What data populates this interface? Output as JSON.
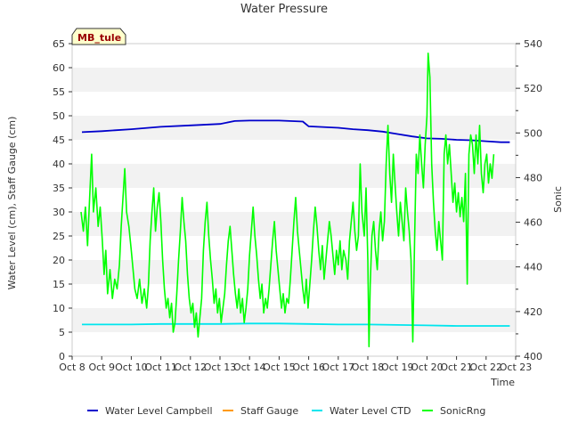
{
  "chart_data": {
    "type": "line",
    "title": "Water Pressure",
    "xlabel": "Time",
    "ylabel_left": "Water Level (cm), Staff Gauge (cm)",
    "ylabel_right": "Sonic",
    "station_label": "MB_tule",
    "x_tick_labels": [
      "Oct 8",
      "Oct 9",
      "Oct 10",
      "Oct 11",
      "Oct 12",
      "Oct 13",
      "Oct 14",
      "Oct 15",
      "Oct 16",
      "Oct 17",
      "Oct 18",
      "Oct 19",
      "Oct 20",
      "Oct 21",
      "Oct 22",
      "Oct 23"
    ],
    "xlim_days": [
      8,
      23
    ],
    "ylim_left": [
      0,
      65
    ],
    "y_ticks_left": [
      "0",
      "5",
      "10",
      "15",
      "20",
      "25",
      "30",
      "35",
      "40",
      "45",
      "50",
      "55",
      "60",
      "65"
    ],
    "ylim_right": [
      400,
      540
    ],
    "y_ticks_right": [
      "400",
      "420",
      "440",
      "460",
      "480",
      "500",
      "520",
      "540"
    ],
    "grid": true,
    "legend_position": "bottom",
    "series": [
      {
        "name": "Water Level Campbell",
        "color": "#0000cc",
        "axis": "left",
        "points": [
          [
            8.33,
            46.6
          ],
          [
            9.0,
            46.8
          ],
          [
            10.0,
            47.2
          ],
          [
            11.0,
            47.7
          ],
          [
            12.0,
            48.0
          ],
          [
            13.0,
            48.3
          ],
          [
            13.5,
            48.9
          ],
          [
            14.0,
            49.0
          ],
          [
            15.0,
            49.0
          ],
          [
            15.8,
            48.8
          ],
          [
            16.0,
            47.8
          ],
          [
            17.0,
            47.5
          ],
          [
            17.5,
            47.2
          ],
          [
            18.0,
            47.0
          ],
          [
            18.5,
            46.7
          ],
          [
            19.0,
            46.2
          ],
          [
            19.5,
            45.7
          ],
          [
            20.0,
            45.3
          ],
          [
            20.5,
            45.2
          ],
          [
            21.0,
            45.0
          ],
          [
            21.5,
            44.9
          ],
          [
            22.0,
            44.7
          ],
          [
            22.5,
            44.5
          ],
          [
            22.8,
            44.5
          ]
        ]
      },
      {
        "name": "Staff Gauge",
        "color": "#ff9900",
        "axis": "left",
        "points": []
      },
      {
        "name": "Water Level CTD",
        "color": "#00e5ee",
        "axis": "left",
        "points": [
          [
            8.33,
            6.6
          ],
          [
            10.0,
            6.6
          ],
          [
            11.0,
            6.7
          ],
          [
            13.0,
            6.7
          ],
          [
            14.0,
            6.8
          ],
          [
            15.0,
            6.8
          ],
          [
            16.0,
            6.7
          ],
          [
            17.0,
            6.6
          ],
          [
            18.0,
            6.6
          ],
          [
            19.0,
            6.5
          ],
          [
            20.0,
            6.4
          ],
          [
            21.0,
            6.3
          ],
          [
            22.0,
            6.3
          ],
          [
            22.8,
            6.3
          ]
        ]
      },
      {
        "name": "SonicRng",
        "color": "#00ff00",
        "axis": "left",
        "points": [
          [
            8.3,
            30
          ],
          [
            8.38,
            26
          ],
          [
            8.45,
            31
          ],
          [
            8.52,
            23
          ],
          [
            8.6,
            34
          ],
          [
            8.66,
            42
          ],
          [
            8.72,
            30
          ],
          [
            8.8,
            35
          ],
          [
            8.88,
            27
          ],
          [
            8.95,
            31
          ],
          [
            9.02,
            24
          ],
          [
            9.08,
            17
          ],
          [
            9.14,
            22
          ],
          [
            9.2,
            13
          ],
          [
            9.28,
            18
          ],
          [
            9.36,
            12
          ],
          [
            9.44,
            16
          ],
          [
            9.52,
            14
          ],
          [
            9.6,
            19
          ],
          [
            9.66,
            27
          ],
          [
            9.72,
            33
          ],
          [
            9.78,
            39
          ],
          [
            9.84,
            30
          ],
          [
            9.92,
            27
          ],
          [
            10.0,
            22
          ],
          [
            10.06,
            18
          ],
          [
            10.12,
            14
          ],
          [
            10.2,
            12
          ],
          [
            10.28,
            16
          ],
          [
            10.36,
            11
          ],
          [
            10.44,
            14
          ],
          [
            10.52,
            10
          ],
          [
            10.58,
            15
          ],
          [
            10.64,
            24
          ],
          [
            10.7,
            30
          ],
          [
            10.76,
            35
          ],
          [
            10.82,
            26
          ],
          [
            10.88,
            31
          ],
          [
            10.94,
            34
          ],
          [
            11.0,
            28
          ],
          [
            11.06,
            20
          ],
          [
            11.12,
            14
          ],
          [
            11.18,
            10
          ],
          [
            11.24,
            12
          ],
          [
            11.3,
            8
          ],
          [
            11.36,
            11
          ],
          [
            11.42,
            5
          ],
          [
            11.48,
            7
          ],
          [
            11.54,
            13
          ],
          [
            11.6,
            20
          ],
          [
            11.66,
            26
          ],
          [
            11.72,
            33
          ],
          [
            11.78,
            28
          ],
          [
            11.84,
            24
          ],
          [
            11.9,
            17
          ],
          [
            11.96,
            12
          ],
          [
            12.02,
            9
          ],
          [
            12.08,
            11
          ],
          [
            12.14,
            6
          ],
          [
            12.2,
            9
          ],
          [
            12.26,
            4
          ],
          [
            12.32,
            8
          ],
          [
            12.38,
            12
          ],
          [
            12.44,
            22
          ],
          [
            12.5,
            28
          ],
          [
            12.56,
            32
          ],
          [
            12.62,
            25
          ],
          [
            12.68,
            20
          ],
          [
            12.74,
            16
          ],
          [
            12.8,
            11
          ],
          [
            12.86,
            14
          ],
          [
            12.92,
            9
          ],
          [
            12.98,
            12
          ],
          [
            13.04,
            7
          ],
          [
            13.1,
            10
          ],
          [
            13.16,
            13
          ],
          [
            13.22,
            19
          ],
          [
            13.28,
            24
          ],
          [
            13.34,
            27
          ],
          [
            13.4,
            22
          ],
          [
            13.46,
            17
          ],
          [
            13.52,
            13
          ],
          [
            13.58,
            10
          ],
          [
            13.64,
            14
          ],
          [
            13.7,
            9
          ],
          [
            13.76,
            12
          ],
          [
            13.82,
            7
          ],
          [
            13.88,
            10
          ],
          [
            13.94,
            14
          ],
          [
            14.0,
            21
          ],
          [
            14.06,
            26
          ],
          [
            14.12,
            31
          ],
          [
            14.18,
            25
          ],
          [
            14.24,
            21
          ],
          [
            14.3,
            16
          ],
          [
            14.36,
            12
          ],
          [
            14.42,
            15
          ],
          [
            14.48,
            9
          ],
          [
            14.54,
            12
          ],
          [
            14.6,
            10
          ],
          [
            14.66,
            14
          ],
          [
            14.72,
            19
          ],
          [
            14.78,
            24
          ],
          [
            14.84,
            28
          ],
          [
            14.9,
            22
          ],
          [
            14.96,
            18
          ],
          [
            15.02,
            14
          ],
          [
            15.08,
            10
          ],
          [
            15.14,
            13
          ],
          [
            15.2,
            9
          ],
          [
            15.26,
            12
          ],
          [
            15.32,
            11
          ],
          [
            15.38,
            16
          ],
          [
            15.44,
            22
          ],
          [
            15.5,
            28
          ],
          [
            15.56,
            33
          ],
          [
            15.62,
            26
          ],
          [
            15.68,
            22
          ],
          [
            15.74,
            18
          ],
          [
            15.8,
            14
          ],
          [
            15.86,
            11
          ],
          [
            15.92,
            16
          ],
          [
            15.98,
            10
          ],
          [
            16.04,
            15
          ],
          [
            16.1,
            20
          ],
          [
            16.16,
            26
          ],
          [
            16.22,
            31
          ],
          [
            16.28,
            27
          ],
          [
            16.34,
            22
          ],
          [
            16.4,
            18
          ],
          [
            16.46,
            23
          ],
          [
            16.52,
            16
          ],
          [
            16.58,
            20
          ],
          [
            16.64,
            24
          ],
          [
            16.7,
            28
          ],
          [
            16.76,
            25
          ],
          [
            16.82,
            21
          ],
          [
            16.88,
            17
          ],
          [
            16.94,
            22
          ],
          [
            17.0,
            19
          ],
          [
            17.06,
            24
          ],
          [
            17.12,
            18
          ],
          [
            17.18,
            22
          ],
          [
            17.26,
            20
          ],
          [
            17.32,
            16
          ],
          [
            17.38,
            24
          ],
          [
            17.44,
            28
          ],
          [
            17.5,
            32
          ],
          [
            17.56,
            26
          ],
          [
            17.62,
            22
          ],
          [
            17.68,
            25
          ],
          [
            17.74,
            40
          ],
          [
            17.8,
            30
          ],
          [
            17.88,
            25
          ],
          [
            17.94,
            35
          ],
          [
            18.0,
            20
          ],
          [
            18.04,
            2
          ],
          [
            18.08,
            15
          ],
          [
            18.14,
            25
          ],
          [
            18.2,
            28
          ],
          [
            18.26,
            22
          ],
          [
            18.32,
            18
          ],
          [
            18.38,
            26
          ],
          [
            18.44,
            30
          ],
          [
            18.5,
            24
          ],
          [
            18.56,
            28
          ],
          [
            18.62,
            40
          ],
          [
            18.68,
            48
          ],
          [
            18.74,
            38
          ],
          [
            18.8,
            32
          ],
          [
            18.86,
            42
          ],
          [
            18.92,
            36
          ],
          [
            18.98,
            30
          ],
          [
            19.04,
            25
          ],
          [
            19.1,
            32
          ],
          [
            19.16,
            28
          ],
          [
            19.22,
            24
          ],
          [
            19.28,
            35
          ],
          [
            19.34,
            30
          ],
          [
            19.4,
            26
          ],
          [
            19.46,
            20
          ],
          [
            19.52,
            3
          ],
          [
            19.58,
            24
          ],
          [
            19.64,
            42
          ],
          [
            19.7,
            38
          ],
          [
            19.76,
            46
          ],
          [
            19.82,
            40
          ],
          [
            19.88,
            35
          ],
          [
            19.94,
            44
          ],
          [
            20.0,
            50
          ],
          [
            20.04,
            63
          ],
          [
            20.1,
            58
          ],
          [
            20.16,
            40
          ],
          [
            20.22,
            32
          ],
          [
            20.28,
            26
          ],
          [
            20.34,
            22
          ],
          [
            20.4,
            28
          ],
          [
            20.46,
            24
          ],
          [
            20.52,
            20
          ],
          [
            20.58,
            42
          ],
          [
            20.64,
            46
          ],
          [
            20.7,
            40
          ],
          [
            20.76,
            44
          ],
          [
            20.82,
            38
          ],
          [
            20.88,
            32
          ],
          [
            20.94,
            36
          ],
          [
            21.0,
            30
          ],
          [
            21.06,
            34
          ],
          [
            21.12,
            29
          ],
          [
            21.18,
            33
          ],
          [
            21.24,
            28
          ],
          [
            21.3,
            38
          ],
          [
            21.36,
            15
          ],
          [
            21.42,
            42
          ],
          [
            21.48,
            46
          ],
          [
            21.54,
            44
          ],
          [
            21.6,
            38
          ],
          [
            21.66,
            46
          ],
          [
            21.72,
            40
          ],
          [
            21.78,
            48
          ],
          [
            21.84,
            38
          ],
          [
            21.9,
            34
          ],
          [
            21.96,
            40
          ],
          [
            22.02,
            42
          ],
          [
            22.08,
            36
          ],
          [
            22.14,
            40
          ],
          [
            22.2,
            37
          ],
          [
            22.26,
            42
          ]
        ]
      }
    ]
  }
}
